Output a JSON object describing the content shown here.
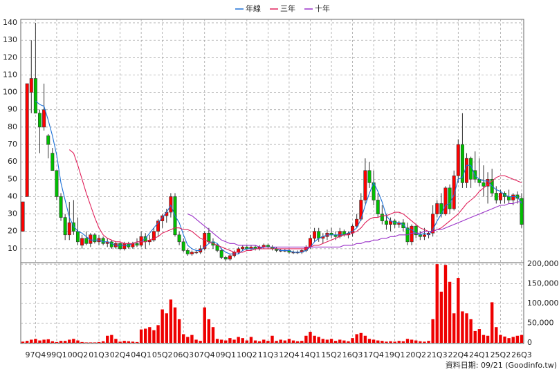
{
  "chart_data": {
    "type": "candlestick",
    "categories": [
      null,
      null,
      null,
      "97Q4",
      null,
      null,
      null,
      null,
      "99Q1",
      null,
      null,
      null,
      null,
      "00Q2",
      null,
      null,
      null,
      null,
      "01Q3",
      null,
      null,
      null,
      null,
      "02Q4",
      null,
      null,
      null,
      null,
      "04Q1",
      null,
      null,
      null,
      null,
      "05Q2",
      null,
      null,
      null,
      null,
      "06Q3",
      null,
      null,
      null,
      null,
      "07Q4",
      null,
      null,
      null,
      null,
      "09Q1",
      null,
      null,
      null,
      null,
      "10Q2",
      null,
      null,
      null,
      null,
      "11Q3",
      null,
      null,
      null,
      null,
      "12Q4",
      null,
      null,
      null,
      null,
      "14Q1",
      null,
      null,
      null,
      null,
      "15Q2",
      null,
      null,
      null,
      null,
      "16Q3",
      null,
      null,
      null,
      null,
      "17Q4",
      null,
      null,
      null,
      null,
      "19Q1",
      null,
      null,
      null,
      null,
      "20Q2",
      null,
      null,
      null,
      null,
      "21Q3",
      null,
      null,
      null,
      null,
      "22Q4",
      null,
      null,
      null,
      null,
      "24Q1",
      null,
      null,
      null,
      null,
      "25Q2",
      null,
      null,
      null,
      null,
      "26Q3"
    ],
    "open": [
      20,
      40,
      100,
      108,
      88,
      80,
      75,
      65,
      55,
      40,
      28,
      18,
      25,
      20,
      12,
      16,
      13,
      18,
      14,
      16,
      13,
      14,
      11,
      13,
      10,
      13,
      11,
      13,
      12,
      17,
      14,
      15,
      20,
      26,
      29,
      31,
      40,
      18,
      14,
      9,
      7,
      8,
      8,
      10,
      19,
      14,
      12,
      9,
      5,
      4,
      6,
      8,
      10,
      11,
      10,
      11,
      10,
      11,
      12,
      11,
      10,
      9,
      9,
      9,
      8,
      8,
      8,
      9,
      11,
      16,
      20,
      16,
      17,
      19,
      18,
      17,
      20,
      18,
      19,
      23,
      27,
      38,
      55,
      48,
      38,
      30,
      26,
      24,
      26,
      24,
      25,
      22,
      14,
      23,
      18,
      17,
      18,
      19,
      30,
      36,
      30,
      45,
      33,
      52,
      70,
      48,
      62,
      55,
      50,
      48,
      46,
      50,
      42,
      38,
      42,
      40,
      38,
      41,
      39
    ],
    "high": [
      37,
      105,
      130,
      140,
      90,
      105,
      76,
      68,
      55,
      42,
      30,
      37,
      38,
      28,
      18,
      20,
      19,
      19,
      18,
      17,
      16,
      15,
      14,
      14,
      14,
      14,
      14,
      16,
      20,
      19,
      18,
      22,
      27,
      30,
      33,
      42,
      42,
      20,
      16,
      10,
      9,
      9,
      12,
      20,
      22,
      16,
      13,
      10,
      6,
      7,
      9,
      11,
      12,
      12,
      12,
      12,
      12,
      13,
      13,
      12,
      11,
      10,
      10,
      10,
      9,
      9,
      10,
      12,
      18,
      22,
      22,
      19,
      21,
      22,
      20,
      22,
      21,
      20,
      24,
      30,
      42,
      62,
      60,
      55,
      42,
      35,
      30,
      28,
      27,
      26,
      27,
      25,
      24,
      24,
      20,
      22,
      20,
      35,
      38,
      42,
      46,
      47,
      55,
      73,
      88,
      65,
      63,
      66,
      62,
      58,
      54,
      56,
      46,
      44,
      43,
      44,
      42,
      43,
      42
    ],
    "low": [
      20,
      40,
      88,
      88,
      65,
      78,
      62,
      55,
      38,
      26,
      15,
      15,
      18,
      12,
      10,
      12,
      11,
      13,
      12,
      12,
      11,
      10,
      10,
      9,
      9,
      10,
      10,
      11,
      11,
      10,
      12,
      14,
      17,
      22,
      25,
      28,
      17,
      12,
      8,
      6,
      6,
      7,
      7,
      9,
      13,
      10,
      8,
      4,
      3,
      3,
      5,
      7,
      9,
      9,
      9,
      9,
      9,
      10,
      10,
      9,
      8,
      8,
      8,
      7,
      7,
      7,
      7,
      8,
      10,
      14,
      14,
      13,
      15,
      16,
      15,
      16,
      17,
      16,
      17,
      22,
      26,
      36,
      45,
      35,
      28,
      24,
      21,
      20,
      22,
      22,
      20,
      12,
      12,
      16,
      15,
      15,
      16,
      17,
      28,
      28,
      29,
      30,
      32,
      48,
      45,
      45,
      45,
      48,
      46,
      40,
      36,
      40,
      36,
      36,
      36,
      36,
      35,
      36,
      22
    ],
    "close": [
      37,
      105,
      108,
      88,
      80,
      90,
      70,
      55,
      40,
      28,
      18,
      25,
      20,
      14,
      16,
      13,
      18,
      14,
      16,
      13,
      14,
      11,
      13,
      10,
      13,
      11,
      13,
      12,
      17,
      14,
      15,
      20,
      26,
      29,
      31,
      40,
      18,
      14,
      9,
      7,
      8,
      8,
      10,
      19,
      14,
      12,
      9,
      5,
      4,
      6,
      8,
      10,
      11,
      10,
      11,
      10,
      11,
      12,
      11,
      10,
      9,
      9,
      9,
      8,
      8,
      8,
      9,
      11,
      16,
      20,
      16,
      17,
      19,
      18,
      17,
      20,
      18,
      19,
      23,
      27,
      38,
      55,
      48,
      38,
      30,
      26,
      24,
      26,
      24,
      25,
      22,
      14,
      23,
      18,
      17,
      18,
      19,
      30,
      36,
      30,
      45,
      33,
      52,
      70,
      48,
      62,
      50,
      50,
      48,
      46,
      50,
      42,
      38,
      42,
      40,
      38,
      41,
      39,
      24
    ],
    "up_color": "#ff0000",
    "down_color": "#00c000",
    "ylim": [
      2,
      142
    ],
    "yticks": [
      10,
      20,
      30,
      40,
      50,
      60,
      70,
      80,
      90,
      100,
      110,
      120,
      130,
      140
    ],
    "grid": true,
    "series": [
      {
        "name": "年線",
        "color": "#1a6fd6",
        "values": [
          null,
          null,
          null,
          95,
          93,
          92,
          84,
          75,
          64,
          48,
          38,
          28,
          23,
          20,
          19,
          17,
          15,
          15,
          15,
          14,
          14,
          13,
          12,
          12,
          12,
          12,
          13,
          14,
          14,
          16,
          19,
          22,
          25,
          28,
          31,
          35,
          29,
          25,
          18,
          12,
          10,
          9,
          9,
          11,
          13,
          14,
          13,
          10,
          8,
          7,
          7,
          7,
          9,
          10,
          10,
          10,
          10,
          11,
          11,
          11,
          10,
          9,
          9,
          9,
          8,
          8,
          8,
          9,
          11,
          14,
          16,
          17,
          18,
          18,
          18,
          18,
          18,
          19,
          20,
          22,
          27,
          35,
          42,
          48,
          43,
          37,
          29,
          26,
          25,
          25,
          24,
          21,
          21,
          19,
          18,
          19,
          18,
          21,
          26,
          30,
          35,
          36,
          41,
          50,
          51,
          58,
          58,
          52,
          50,
          49,
          49,
          46,
          44,
          43,
          41,
          40,
          40,
          40,
          36
        ]
      },
      {
        "name": "三年",
        "color": "#e0205a",
        "values": [
          null,
          null,
          null,
          null,
          null,
          null,
          null,
          null,
          null,
          null,
          null,
          67,
          65,
          58,
          50,
          42,
          35,
          28,
          22,
          18,
          16,
          15,
          14,
          14,
          13,
          13,
          13,
          14,
          14,
          14,
          15,
          16,
          17,
          19,
          20,
          21,
          22,
          22,
          21,
          21,
          20,
          18,
          16,
          15,
          14,
          13,
          12,
          11,
          10,
          9,
          8,
          8,
          8,
          9,
          9,
          10,
          10,
          10,
          10,
          10,
          10,
          10,
          10,
          10,
          10,
          10,
          10,
          10,
          11,
          12,
          12,
          13,
          14,
          15,
          16,
          17,
          18,
          18,
          19,
          20,
          22,
          25,
          27,
          28,
          28,
          29,
          29,
          30,
          31,
          31,
          30,
          28,
          26,
          24,
          22,
          21,
          20,
          20,
          21,
          22,
          24,
          26,
          28,
          30,
          33,
          36,
          38,
          40,
          43,
          45,
          47,
          49,
          51,
          52,
          52,
          51,
          50,
          49,
          48
        ]
      },
      {
        "name": "十年",
        "color": "#9a30c8",
        "values": [
          null,
          null,
          null,
          null,
          null,
          null,
          null,
          null,
          null,
          null,
          null,
          null,
          null,
          null,
          null,
          null,
          null,
          null,
          null,
          null,
          null,
          null,
          null,
          null,
          null,
          null,
          null,
          null,
          null,
          null,
          null,
          null,
          null,
          null,
          null,
          null,
          null,
          null,
          null,
          30,
          29,
          27,
          25,
          23,
          21,
          19,
          17,
          15,
          14,
          13,
          13,
          12,
          12,
          12,
          12,
          12,
          11,
          11,
          11,
          11,
          11,
          11,
          11,
          11,
          11,
          11,
          11,
          11,
          11,
          11,
          11,
          11,
          11,
          11,
          11,
          11,
          12,
          12,
          12,
          13,
          13,
          14,
          14,
          15,
          15,
          16,
          16,
          17,
          17,
          18,
          18,
          18,
          19,
          19,
          19,
          20,
          20,
          20,
          21,
          21,
          22,
          23,
          24,
          25,
          26,
          27,
          28,
          29,
          30,
          31,
          32,
          33,
          34,
          35,
          35,
          36,
          36,
          37,
          37
        ]
      }
    ],
    "volume": {
      "color": "#ee0000",
      "values": [
        3000,
        5000,
        8000,
        10000,
        6000,
        8000,
        9000,
        4000,
        2000,
        5000,
        5000,
        8000,
        10000,
        6000,
        2000,
        1000,
        1000,
        1000,
        2000,
        4000,
        18000,
        20000,
        10000,
        3000,
        5000,
        4000,
        3000,
        2000,
        34000,
        36000,
        40000,
        32000,
        45000,
        85000,
        75000,
        110000,
        90000,
        60000,
        22000,
        15000,
        20000,
        8000,
        5000,
        90000,
        60000,
        40000,
        10000,
        8000,
        6000,
        12000,
        8000,
        15000,
        12000,
        6000,
        15000,
        6000,
        4000,
        8000,
        5000,
        18000,
        5000,
        8000,
        6000,
        10000,
        6000,
        4000,
        5000,
        18000,
        28000,
        18000,
        15000,
        10000,
        8000,
        10000,
        5000,
        8000,
        6000,
        4000,
        12000,
        22000,
        25000,
        18000,
        10000,
        8000,
        6000,
        5000,
        3000,
        4000,
        3000,
        5000,
        4000,
        10000,
        8000,
        6000,
        4000,
        3000,
        5000,
        60000,
        200000,
        130000,
        198000,
        155000,
        75000,
        165000,
        80000,
        75000,
        60000,
        30000,
        35000,
        20000,
        18000,
        103000,
        40000,
        20000,
        16000,
        12000,
        15000,
        18000,
        20000
      ],
      "y2lim": [
        0,
        202000
      ],
      "y2ticks": [
        0,
        {
          "value": 50000,
          "label": "50,000"
        },
        {
          "value": 100000,
          "label": "100,000"
        },
        {
          "value": 150000,
          "label": "150,000"
        },
        {
          "value": 200000,
          "label": "200,000"
        }
      ]
    },
    "note": "資料日期: 09/21 (Goodinfo.tw)"
  }
}
